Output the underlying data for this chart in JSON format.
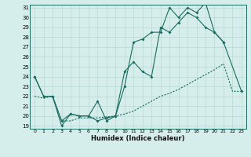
{
  "xlabel": "Humidex (Indice chaleur)",
  "bg_color": "#d6eeeb",
  "grid_color": "#b8d8d4",
  "line_color": "#1a6b60",
  "xlim": [
    0,
    23
  ],
  "ylim": [
    19,
    31
  ],
  "yticks": [
    19,
    20,
    21,
    22,
    23,
    24,
    25,
    26,
    27,
    28,
    29,
    30,
    31
  ],
  "xticks": [
    0,
    1,
    2,
    3,
    4,
    5,
    6,
    7,
    8,
    9,
    10,
    11,
    12,
    13,
    14,
    15,
    16,
    17,
    18,
    19,
    20,
    21,
    22,
    23
  ],
  "line1_x": [
    0,
    1,
    2,
    3,
    4,
    5,
    6,
    7,
    8,
    9,
    10,
    11,
    12,
    13,
    14,
    15,
    16,
    17,
    18,
    19,
    20,
    21
  ],
  "line1_y": [
    24.0,
    22.0,
    22.0,
    19.0,
    20.2,
    20.0,
    20.0,
    21.5,
    19.5,
    20.0,
    23.0,
    27.5,
    27.8,
    28.5,
    28.5,
    31.0,
    30.0,
    31.0,
    30.5,
    31.5,
    28.5,
    27.5
  ],
  "line2_x": [
    0,
    1,
    2,
    3,
    4,
    5,
    6,
    7,
    8,
    9,
    10,
    11,
    12,
    13,
    14,
    15,
    16,
    17,
    18,
    19,
    20,
    21,
    23
  ],
  "line2_y": [
    24.0,
    22.0,
    22.0,
    19.5,
    20.2,
    20.0,
    20.0,
    19.5,
    19.8,
    20.0,
    24.5,
    25.5,
    24.5,
    24.0,
    29.0,
    28.5,
    29.5,
    30.5,
    30.0,
    29.0,
    28.5,
    27.5,
    22.5
  ],
  "line3_x": [
    0,
    1,
    2,
    3,
    4,
    5,
    6,
    7,
    8,
    9,
    10,
    11,
    12,
    13,
    14,
    15,
    16,
    17,
    18,
    19,
    20,
    21,
    22,
    23
  ],
  "line3_y": [
    22.0,
    21.8,
    22.0,
    19.5,
    19.5,
    19.8,
    19.8,
    19.8,
    19.9,
    20.0,
    20.2,
    20.5,
    21.0,
    21.5,
    22.0,
    22.3,
    22.7,
    23.2,
    23.7,
    24.2,
    24.7,
    25.3,
    22.5,
    22.5
  ]
}
